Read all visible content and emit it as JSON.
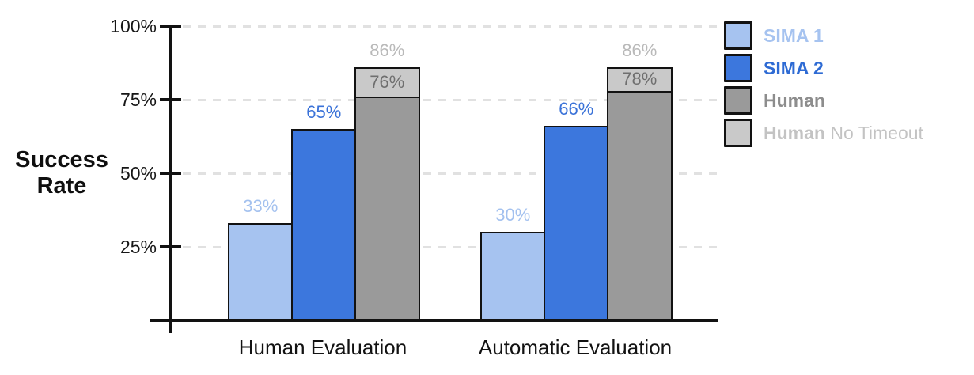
{
  "y_axis_title": {
    "line1": "Success",
    "line2": "Rate"
  },
  "axis": {
    "yticks": [
      {
        "label": "100%",
        "value": 100
      },
      {
        "label": "75%",
        "value": 75
      },
      {
        "label": "50%",
        "value": 50
      },
      {
        "label": "25%",
        "value": 25
      }
    ]
  },
  "legend": {
    "items": [
      {
        "label": "SIMA 1",
        "swatch": "#a6c3f0",
        "text_color": "#a6c3f0"
      },
      {
        "label": "SIMA 2",
        "swatch": "#3c77dd",
        "text_color": "#2e6bd4"
      },
      {
        "label": "Human",
        "swatch": "#9a9a9a",
        "text_color": "#8d8d8d"
      },
      {
        "label_bold": "Human",
        "label_rest": " No Timeout",
        "swatch": "#c9c9c9",
        "text_color": "#c3c3c3"
      }
    ]
  },
  "chart_data": {
    "type": "bar",
    "title": "",
    "xlabel": "",
    "ylabel": "Success Rate",
    "ylim": [
      0,
      100
    ],
    "grid": "horizontal dashed lines at 25%, 50%, 75%, 100%",
    "legend_position": "right",
    "categories": [
      "Human Evaluation",
      "Automatic Evaluation"
    ],
    "series": [
      {
        "name": "SIMA 1",
        "values": [
          33,
          30
        ],
        "labels": [
          "33%",
          "30%"
        ]
      },
      {
        "name": "SIMA 2",
        "values": [
          65,
          66
        ],
        "labels": [
          "65%",
          "66%"
        ]
      },
      {
        "name": "Human",
        "values": [
          76,
          78
        ],
        "labels": [
          "76%",
          "78%"
        ]
      },
      {
        "name": "Human No Timeout",
        "values": [
          86,
          86
        ],
        "labels": [
          "86%",
          "86%"
        ],
        "render": "light-gray cap stacked on top of Human bar"
      }
    ]
  },
  "colors": {
    "sima1_bar": "#a6c3f0",
    "sima2_bar": "#3c77dd",
    "human_bar": "#9a9a9a",
    "human_no_timeout_bar": "#c9c9c9",
    "sima1_value_label": "#a3c1ef",
    "sima2_value_label": "#3a72d8",
    "human_value_label": "#6f6f6f",
    "no_timeout_value_label": "#b9b9b9",
    "axis": "#121212",
    "grid": "#e1e1e1"
  }
}
